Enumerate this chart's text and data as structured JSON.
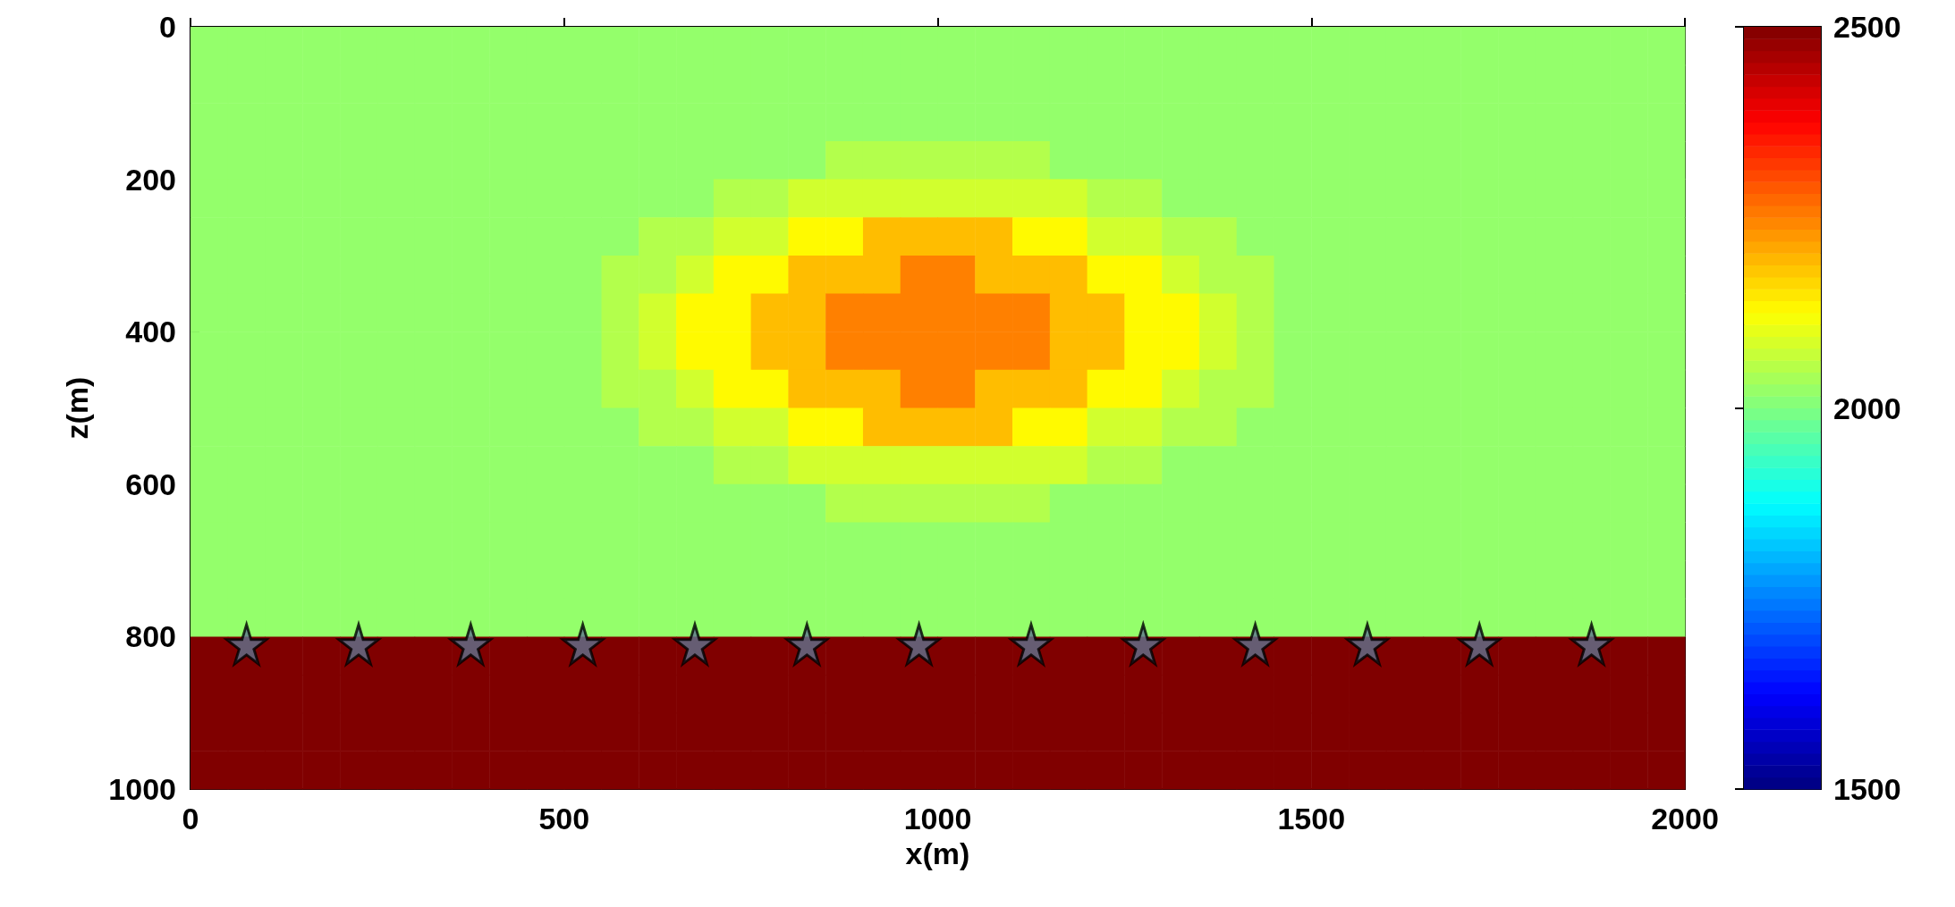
{
  "chart_data": {
    "type": "heatmap",
    "xlabel": "x(m)",
    "ylabel": "z(m)",
    "x": [
      25,
      75,
      125,
      175,
      225,
      275,
      325,
      375,
      425,
      475,
      525,
      575,
      625,
      675,
      725,
      775,
      825,
      875,
      925,
      975,
      1025,
      1075,
      1125,
      1175,
      1225,
      1275,
      1325,
      1375,
      1425,
      1475,
      1525,
      1575,
      1625,
      1675,
      1725,
      1775,
      1825,
      1875,
      1925,
      1975
    ],
    "xlim": [
      0,
      2000
    ],
    "xticks": [
      0,
      500,
      1000,
      1500,
      2000
    ],
    "ylim": [
      1000,
      0
    ],
    "yticks": [
      0,
      200,
      400,
      600,
      800,
      1000
    ],
    "clim": [
      1500,
      2500
    ],
    "cticks": [
      1500,
      2000,
      2500
    ],
    "cells": [
      [
        2020,
        2020,
        2020,
        2020,
        2020,
        2020,
        2020,
        2020,
        2020,
        2020,
        2020,
        2020,
        2020,
        2020,
        2020,
        2020,
        2020,
        2020,
        2020,
        2020,
        2020,
        2020,
        2020,
        2020,
        2020,
        2020,
        2020,
        2020,
        2020,
        2020,
        2020,
        2020,
        2020,
        2020,
        2020,
        2020,
        2020,
        2020,
        2020,
        2020
      ],
      [
        2020,
        2020,
        2020,
        2020,
        2020,
        2020,
        2020,
        2020,
        2020,
        2020,
        2020,
        2020,
        2020,
        2020,
        2020,
        2020,
        2020,
        2020,
        2020,
        2020,
        2020,
        2020,
        2020,
        2020,
        2020,
        2020,
        2020,
        2020,
        2020,
        2020,
        2020,
        2020,
        2020,
        2020,
        2020,
        2020,
        2020,
        2020,
        2020,
        2020
      ],
      [
        2020,
        2020,
        2020,
        2020,
        2020,
        2020,
        2020,
        2020,
        2020,
        2020,
        2020,
        2020,
        2020,
        2020,
        2020,
        2020,
        2020,
        2020,
        2020,
        2020,
        2020,
        2020,
        2020,
        2020,
        2020,
        2020,
        2020,
        2020,
        2020,
        2020,
        2020,
        2020,
        2020,
        2020,
        2020,
        2020,
        2020,
        2020,
        2020,
        2020
      ],
      [
        2020,
        2020,
        2020,
        2020,
        2020,
        2020,
        2020,
        2020,
        2020,
        2020,
        2020,
        2020,
        2020,
        2020,
        2020,
        2020,
        2020,
        2050,
        2050,
        2050,
        2050,
        2050,
        2050,
        2020,
        2020,
        2020,
        2020,
        2020,
        2020,
        2020,
        2020,
        2020,
        2020,
        2020,
        2020,
        2020,
        2020,
        2020,
        2020,
        2020
      ],
      [
        2020,
        2020,
        2020,
        2020,
        2020,
        2020,
        2020,
        2020,
        2020,
        2020,
        2020,
        2020,
        2020,
        2020,
        2050,
        2050,
        2080,
        2080,
        2080,
        2080,
        2080,
        2080,
        2080,
        2080,
        2050,
        2050,
        2020,
        2020,
        2020,
        2020,
        2020,
        2020,
        2020,
        2020,
        2020,
        2020,
        2020,
        2020,
        2020,
        2020
      ],
      [
        2020,
        2020,
        2020,
        2020,
        2020,
        2020,
        2020,
        2020,
        2020,
        2020,
        2020,
        2020,
        2050,
        2050,
        2080,
        2080,
        2130,
        2130,
        2190,
        2190,
        2190,
        2190,
        2130,
        2130,
        2080,
        2080,
        2050,
        2050,
        2020,
        2020,
        2020,
        2020,
        2020,
        2020,
        2020,
        2020,
        2020,
        2020,
        2020,
        2020
      ],
      [
        2020,
        2020,
        2020,
        2020,
        2020,
        2020,
        2020,
        2020,
        2020,
        2020,
        2020,
        2050,
        2050,
        2080,
        2130,
        2130,
        2190,
        2190,
        2190,
        2250,
        2250,
        2190,
        2190,
        2190,
        2130,
        2130,
        2080,
        2050,
        2050,
        2020,
        2020,
        2020,
        2020,
        2020,
        2020,
        2020,
        2020,
        2020,
        2020,
        2020
      ],
      [
        2020,
        2020,
        2020,
        2020,
        2020,
        2020,
        2020,
        2020,
        2020,
        2020,
        2020,
        2050,
        2080,
        2130,
        2130,
        2190,
        2190,
        2250,
        2250,
        2250,
        2250,
        2250,
        2250,
        2190,
        2190,
        2130,
        2130,
        2080,
        2050,
        2020,
        2020,
        2020,
        2020,
        2020,
        2020,
        2020,
        2020,
        2020,
        2020,
        2020
      ],
      [
        2020,
        2020,
        2020,
        2020,
        2020,
        2020,
        2020,
        2020,
        2020,
        2020,
        2020,
        2050,
        2080,
        2130,
        2130,
        2190,
        2190,
        2250,
        2250,
        2250,
        2250,
        2250,
        2250,
        2190,
        2190,
        2130,
        2130,
        2080,
        2050,
        2020,
        2020,
        2020,
        2020,
        2020,
        2020,
        2020,
        2020,
        2020,
        2020,
        2020
      ],
      [
        2020,
        2020,
        2020,
        2020,
        2020,
        2020,
        2020,
        2020,
        2020,
        2020,
        2020,
        2050,
        2050,
        2080,
        2130,
        2130,
        2190,
        2190,
        2190,
        2250,
        2250,
        2190,
        2190,
        2190,
        2130,
        2130,
        2080,
        2050,
        2050,
        2020,
        2020,
        2020,
        2020,
        2020,
        2020,
        2020,
        2020,
        2020,
        2020,
        2020
      ],
      [
        2020,
        2020,
        2020,
        2020,
        2020,
        2020,
        2020,
        2020,
        2020,
        2020,
        2020,
        2020,
        2050,
        2050,
        2080,
        2080,
        2130,
        2130,
        2190,
        2190,
        2190,
        2190,
        2130,
        2130,
        2080,
        2080,
        2050,
        2050,
        2020,
        2020,
        2020,
        2020,
        2020,
        2020,
        2020,
        2020,
        2020,
        2020,
        2020,
        2020
      ],
      [
        2020,
        2020,
        2020,
        2020,
        2020,
        2020,
        2020,
        2020,
        2020,
        2020,
        2020,
        2020,
        2020,
        2020,
        2050,
        2050,
        2080,
        2080,
        2080,
        2080,
        2080,
        2080,
        2080,
        2080,
        2050,
        2050,
        2020,
        2020,
        2020,
        2020,
        2020,
        2020,
        2020,
        2020,
        2020,
        2020,
        2020,
        2020,
        2020,
        2020
      ],
      [
        2020,
        2020,
        2020,
        2020,
        2020,
        2020,
        2020,
        2020,
        2020,
        2020,
        2020,
        2020,
        2020,
        2020,
        2020,
        2020,
        2020,
        2050,
        2050,
        2050,
        2050,
        2050,
        2050,
        2020,
        2020,
        2020,
        2020,
        2020,
        2020,
        2020,
        2020,
        2020,
        2020,
        2020,
        2020,
        2020,
        2020,
        2020,
        2020,
        2020
      ],
      [
        2020,
        2020,
        2020,
        2020,
        2020,
        2020,
        2020,
        2020,
        2020,
        2020,
        2020,
        2020,
        2020,
        2020,
        2020,
        2020,
        2020,
        2020,
        2020,
        2020,
        2020,
        2020,
        2020,
        2020,
        2020,
        2020,
        2020,
        2020,
        2020,
        2020,
        2020,
        2020,
        2020,
        2020,
        2020,
        2020,
        2020,
        2020,
        2020,
        2020
      ],
      [
        2020,
        2020,
        2020,
        2020,
        2020,
        2020,
        2020,
        2020,
        2020,
        2020,
        2020,
        2020,
        2020,
        2020,
        2020,
        2020,
        2020,
        2020,
        2020,
        2020,
        2020,
        2020,
        2020,
        2020,
        2020,
        2020,
        2020,
        2020,
        2020,
        2020,
        2020,
        2020,
        2020,
        2020,
        2020,
        2020,
        2020,
        2020,
        2020,
        2020
      ],
      [
        2020,
        2020,
        2020,
        2020,
        2020,
        2020,
        2020,
        2020,
        2020,
        2020,
        2020,
        2020,
        2020,
        2020,
        2020,
        2020,
        2020,
        2020,
        2020,
        2020,
        2020,
        2020,
        2020,
        2020,
        2020,
        2020,
        2020,
        2020,
        2020,
        2020,
        2020,
        2020,
        2020,
        2020,
        2020,
        2020,
        2020,
        2020,
        2020,
        2020
      ],
      [
        2500,
        2500,
        2500,
        2500,
        2500,
        2500,
        2500,
        2500,
        2500,
        2500,
        2500,
        2500,
        2500,
        2500,
        2500,
        2500,
        2500,
        2500,
        2500,
        2500,
        2500,
        2500,
        2500,
        2500,
        2500,
        2500,
        2500,
        2500,
        2500,
        2500,
        2500,
        2500,
        2500,
        2500,
        2500,
        2500,
        2500,
        2500,
        2500,
        2500
      ],
      [
        2500,
        2500,
        2500,
        2500,
        2500,
        2500,
        2500,
        2500,
        2500,
        2500,
        2500,
        2500,
        2500,
        2500,
        2500,
        2500,
        2500,
        2500,
        2500,
        2500,
        2500,
        2500,
        2500,
        2500,
        2500,
        2500,
        2500,
        2500,
        2500,
        2500,
        2500,
        2500,
        2500,
        2500,
        2500,
        2500,
        2500,
        2500,
        2500,
        2500
      ],
      [
        2500,
        2500,
        2500,
        2500,
        2500,
        2500,
        2500,
        2500,
        2500,
        2500,
        2500,
        2500,
        2500,
        2500,
        2500,
        2500,
        2500,
        2500,
        2500,
        2500,
        2500,
        2500,
        2500,
        2500,
        2500,
        2500,
        2500,
        2500,
        2500,
        2500,
        2500,
        2500,
        2500,
        2500,
        2500,
        2500,
        2500,
        2500,
        2500,
        2500
      ],
      [
        2500,
        2500,
        2500,
        2500,
        2500,
        2500,
        2500,
        2500,
        2500,
        2500,
        2500,
        2500,
        2500,
        2500,
        2500,
        2500,
        2500,
        2500,
        2500,
        2500,
        2500,
        2500,
        2500,
        2500,
        2500,
        2500,
        2500,
        2500,
        2500,
        2500,
        2500,
        2500,
        2500,
        2500,
        2500,
        2500,
        2500,
        2500,
        2500,
        2500
      ]
    ],
    "series": [
      {
        "type": "scatter",
        "color": "#5f7490",
        "x": [
          75,
          225,
          375,
          525,
          675,
          825,
          975,
          1125,
          1275,
          1425,
          1575,
          1725,
          1875
        ],
        "values": [
          810,
          810,
          810,
          810,
          810,
          810,
          810,
          810,
          810,
          810,
          810,
          810,
          810
        ]
      }
    ],
    "marker": "star"
  }
}
